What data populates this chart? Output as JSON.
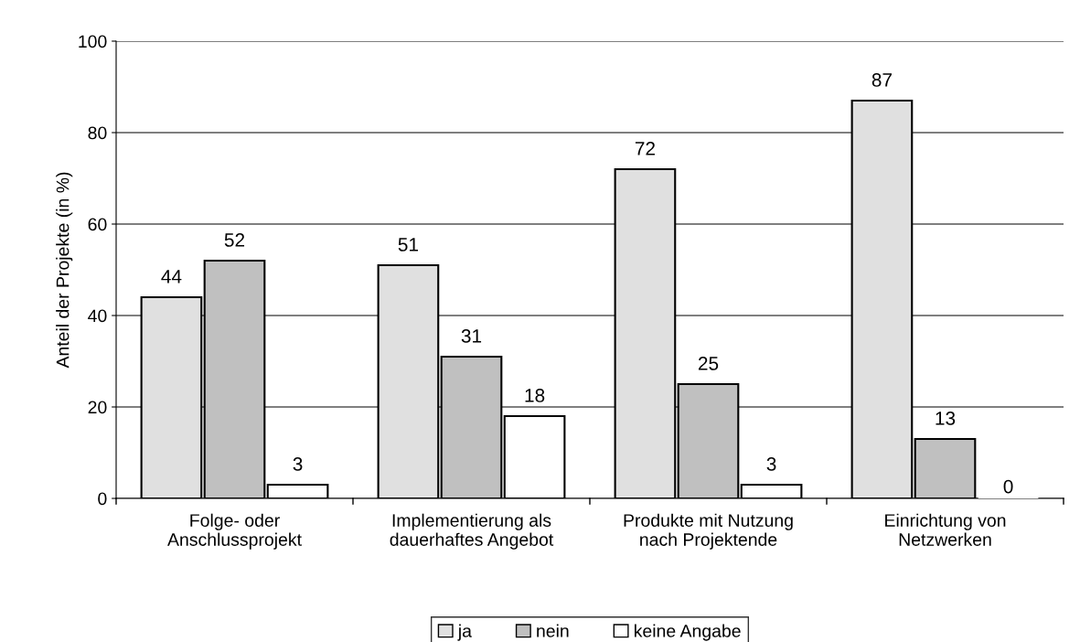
{
  "chart_data": {
    "type": "bar",
    "ylabel": "Anteil der Projekte (in %)",
    "categories": [
      "Folge- oder\nAnschlussprojekt",
      "Implementierung als\ndauerhaftes Angebot",
      "Produkte mit Nutzung\nnach Projektende",
      "Einrichtung von\nNetzwerken"
    ],
    "series": [
      {
        "name": "ja",
        "color": "#e0e0e0",
        "values": [
          44,
          51,
          72,
          87
        ]
      },
      {
        "name": "nein",
        "color": "#c0c0c0",
        "values": [
          52,
          31,
          25,
          13
        ]
      },
      {
        "name": "keine Angabe",
        "color": "#ffffff",
        "values": [
          3,
          18,
          3,
          0
        ]
      }
    ],
    "ylim": [
      0,
      100
    ],
    "yticks": [
      0,
      20,
      40,
      60,
      80,
      100
    ],
    "grid": "y",
    "legend": "bottom",
    "data_labels": true
  }
}
